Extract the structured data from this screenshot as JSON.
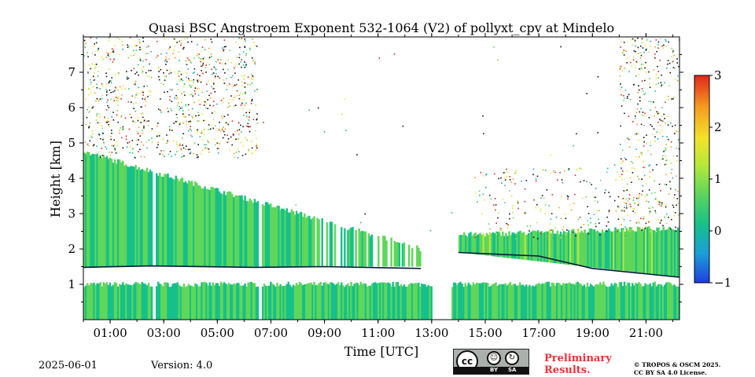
{
  "chart_data": {
    "type": "heatmap",
    "title": "Quasi BSC Angstroem Exponent 532-1064 (V2) of pollyxt_cpv at Mindelo",
    "xlabel": "Time [UTC]",
    "ylabel": "Height [km]",
    "x_range_hours": [
      0,
      22.25
    ],
    "ylim": [
      0,
      8
    ],
    "x_ticks": [
      {
        "value": 1,
        "label": "01:00"
      },
      {
        "value": 3,
        "label": "03:00"
      },
      {
        "value": 5,
        "label": "05:00"
      },
      {
        "value": 7,
        "label": "07:00"
      },
      {
        "value": 9,
        "label": "09:00"
      },
      {
        "value": 11,
        "label": "11:00"
      },
      {
        "value": 13,
        "label": "13:00"
      },
      {
        "value": 15,
        "label": "15:00"
      },
      {
        "value": 17,
        "label": "17:00"
      },
      {
        "value": 19,
        "label": "19:00"
      },
      {
        "value": 21,
        "label": "21:00"
      }
    ],
    "y_ticks": [
      {
        "value": 1,
        "label": "1"
      },
      {
        "value": 2,
        "label": "2"
      },
      {
        "value": 3,
        "label": "3"
      },
      {
        "value": 4,
        "label": "4"
      },
      {
        "value": 5,
        "label": "5"
      },
      {
        "value": 6,
        "label": "6"
      },
      {
        "value": 7,
        "label": "7"
      }
    ],
    "colorbar": {
      "min": -1,
      "max": 3,
      "ticks": [
        {
          "value": 3,
          "label": "3"
        },
        {
          "value": 2,
          "label": "2"
        },
        {
          "value": 1,
          "label": "1"
        },
        {
          "value": 0,
          "label": "0"
        },
        {
          "value": -1,
          "label": "−1"
        }
      ],
      "colors": [
        "#1f3ee0",
        "#1a9fd8",
        "#17c08a",
        "#5fd65a",
        "#b8e83a",
        "#f3e22a",
        "#f49a1f",
        "#e2261d"
      ]
    },
    "data_gaps_hours": [
      [
        2.55,
        2.7
      ],
      [
        6.5,
        6.65
      ],
      [
        13.0,
        13.7
      ]
    ],
    "layers": [
      {
        "name": "marine-boundary-layer",
        "t0": 0,
        "t1": 22.25,
        "bottom_km": 0.0,
        "top_km_start": 1.0,
        "top_km_end": 1.0,
        "value": 0.5
      },
      {
        "name": "dust-layer-morning",
        "t0": 0,
        "t1": 12.6,
        "bottom_km": 1.5,
        "top_km_start": 4.75,
        "top_km_end": 2.0,
        "value": 0.55
      },
      {
        "name": "dust-layer-evening",
        "t0": 14.0,
        "t1": 22.25,
        "bottom_km_start": 1.9,
        "bottom_km_end": 1.2,
        "top_km_start": 2.4,
        "top_km_end": 2.6,
        "value": 0.6
      }
    ]
  },
  "footer": {
    "date": "2025-06-01",
    "version": "Version: 4.0",
    "preliminary_line1": "Preliminary",
    "preliminary_line2": "Results.",
    "copyright_line1": "© TROPOS & OSCM 2025.",
    "copyright_line2": "CC BY SA 4.0 License.",
    "cc_label": "cc",
    "cc_by": "BY",
    "cc_sa": "SA"
  }
}
